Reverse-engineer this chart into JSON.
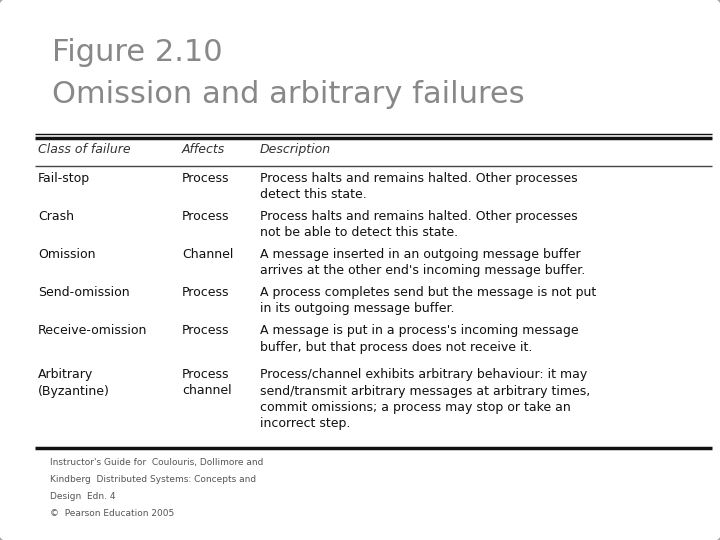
{
  "title_line1": "Figure 2.10",
  "title_line2": "Omission and arbitrary failures",
  "header": [
    "Class of failure",
    "Affects",
    "Description"
  ],
  "rows": [
    {
      "class": "Fail-stop",
      "affects": "Process",
      "description": "Process halts and remains halted. Other processes\ndetect this state."
    },
    {
      "class": "Crash",
      "affects": "Process",
      "description": "Process halts and remains halted. Other processes\nnot be able to detect this state."
    },
    {
      "class": "Omission",
      "affects": "Channel",
      "description": "A message inserted in an outgoing message buffer\narrives at the other end's incoming message buffer."
    },
    {
      "class": "Send-omission",
      "affects": "Process",
      "description": "A process completes send but the message is not put\nin its outgoing message buffer."
    },
    {
      "class": "Receive-omission",
      "affects": "Process",
      "description": "A message is put in a process's incoming message\nbuffer, but that process does not receive it."
    },
    {
      "class": "Arbitrary\n(Byzantine)",
      "affects": "Process\nchannel",
      "description": "Process/channel exhibits arbitrary behaviour: it may\nsend/transmit arbitrary messages at arbitrary times,\ncommit omissions; a process may stop or take an\nincorrect step."
    }
  ],
  "footer_lines": [
    "Instructor's Guide for  Coulouris, Dollimore and",
    "Kindberg  Distributed Systems: Concepts and",
    "Design  Edn. 4",
    "©  Pearson Education 2005"
  ],
  "bg_color": "#ffffff",
  "border_color": "#aaaaaa",
  "title_color": "#888888",
  "header_color": "#333333",
  "body_color": "#111111",
  "footer_color": "#555555",
  "thick_line_color": "#111111",
  "thin_line_color": "#444444",
  "figwidth": 7.2,
  "figheight": 5.4,
  "dpi": 100
}
